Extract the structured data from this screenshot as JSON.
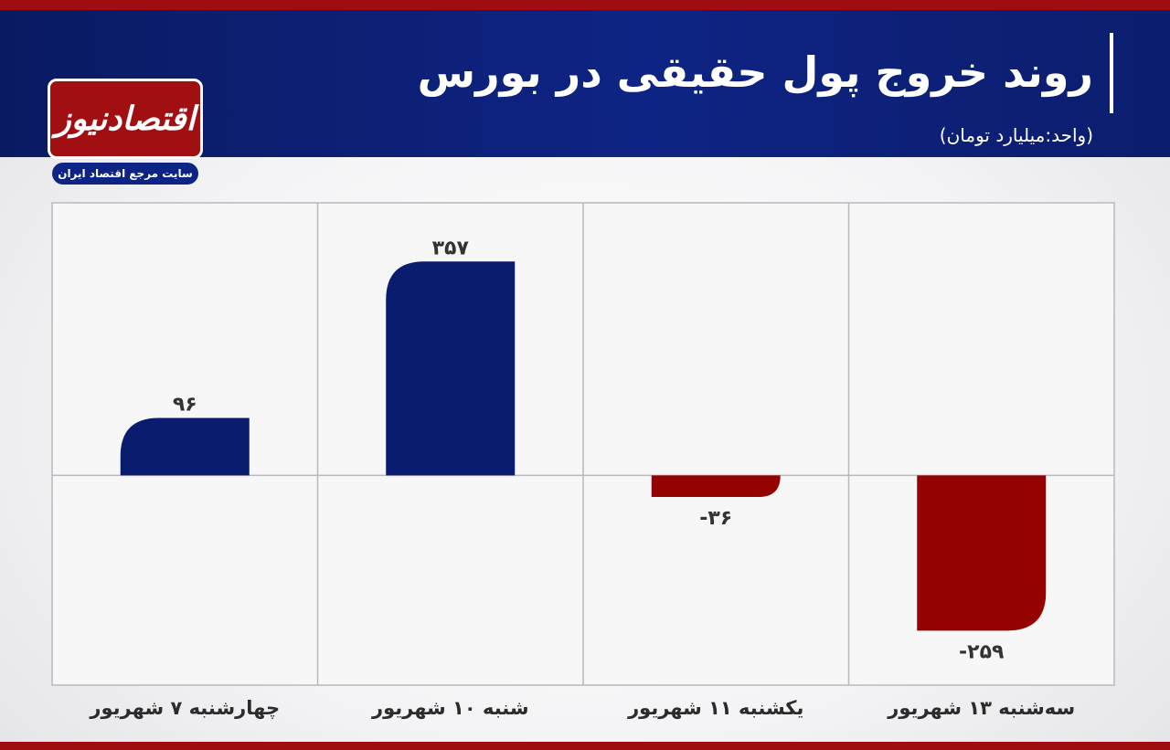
{
  "header": {
    "title": "روند خروج پول حقیقی در بورس",
    "unit": "(واحد:میلیارد تومان)"
  },
  "logo": {
    "name": "اقتصادنیوز",
    "tagline": "سایت مرجع اقتصاد ایران"
  },
  "colors": {
    "header_blue": "#0e2484",
    "accent_red": "#a00d10",
    "positive_bar": "#0a1c6e",
    "negative_bar": "#940202"
  },
  "chart_data": {
    "type": "bar",
    "categories": [
      "سه‌شنبه ۱۳ شهریور",
      "یکشنبه ۱۱ شهریور",
      "شنبه ۱۰ شهریور",
      "چهارشنبه ۷ شهریور"
    ],
    "values": [
      -259,
      -36,
      357,
      96
    ],
    "data_labels": [
      "-۲۵۹",
      "-۳۶",
      "۳۵۷",
      "۹۶"
    ],
    "direction": "rtl",
    "ylim": [
      -350,
      455
    ],
    "grid": true
  }
}
